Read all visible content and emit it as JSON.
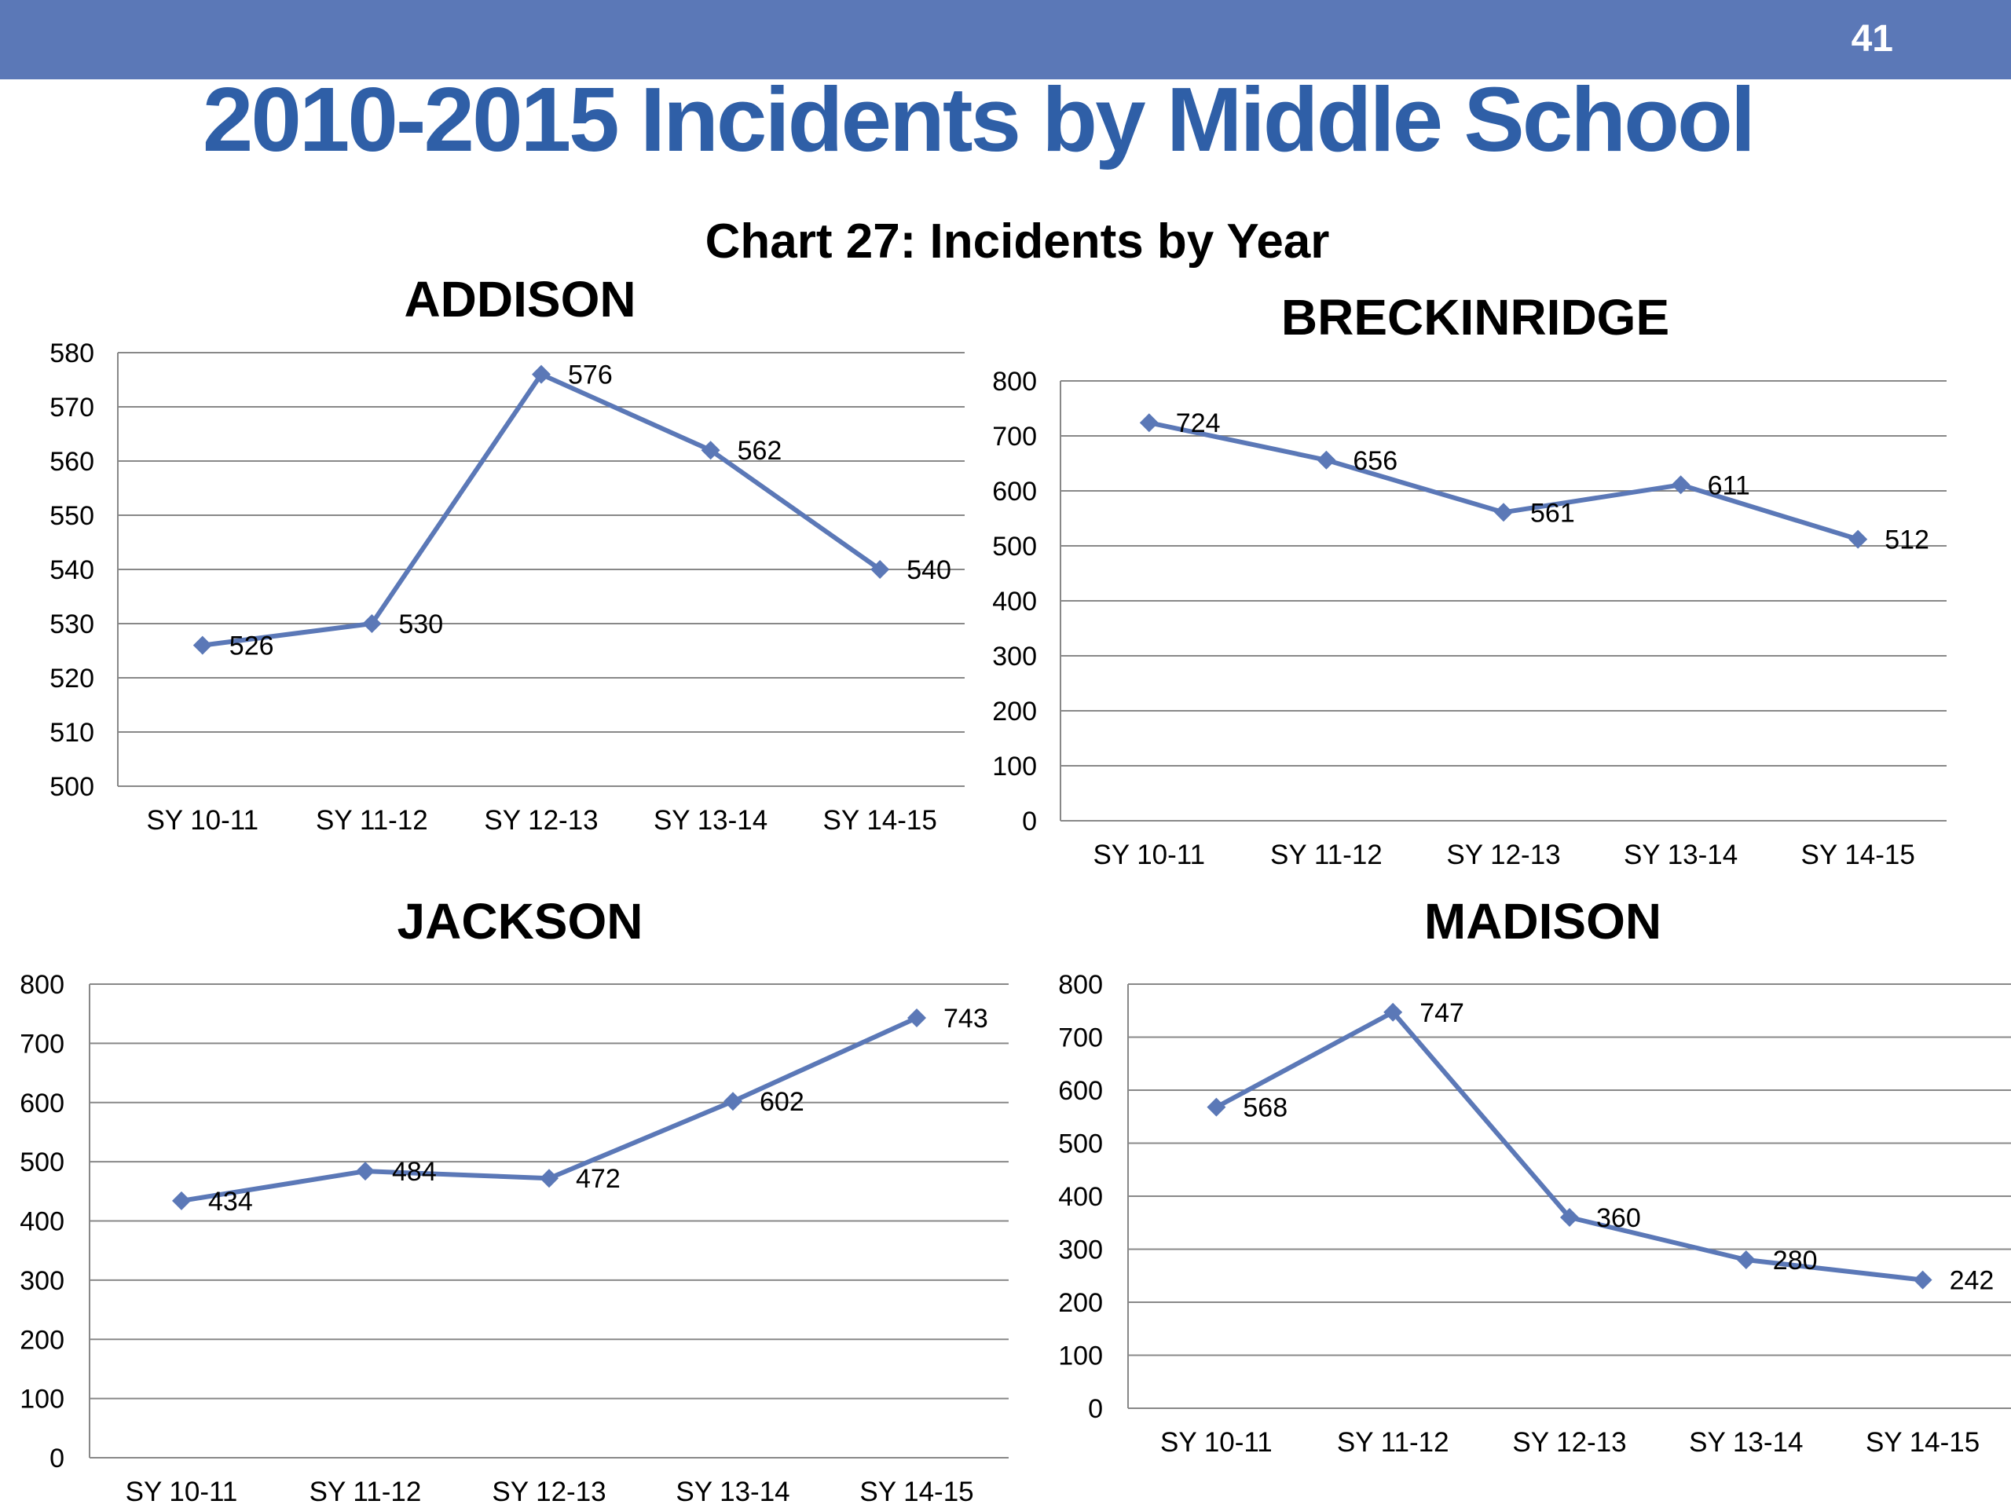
{
  "slide": {
    "number": "41",
    "title": "2010-2015 Incidents by Middle School",
    "accent_color": "#5b78b7",
    "title_color": "#2f5fa7"
  },
  "chart_heading": "Chart 27: Incidents by Year",
  "chart_data": [
    {
      "type": "line",
      "title": "ADDISON",
      "categories": [
        "SY 10-11",
        "SY 11-12",
        "SY 12-13",
        "SY 13-14",
        "SY 14-15"
      ],
      "values": [
        526,
        530,
        576,
        562,
        540
      ],
      "ylim": [
        500,
        580
      ],
      "yticks": [
        500,
        510,
        520,
        530,
        540,
        550,
        560,
        570,
        580
      ],
      "line_color": "#5b78b7",
      "grid": true
    },
    {
      "type": "line",
      "title": "BRECKINRIDGE",
      "categories": [
        "SY 10-11",
        "SY 11-12",
        "SY 12-13",
        "SY 13-14",
        "SY 14-15"
      ],
      "values": [
        724,
        656,
        561,
        611,
        512
      ],
      "ylim": [
        0,
        800
      ],
      "yticks": [
        0,
        100,
        200,
        300,
        400,
        500,
        600,
        700,
        800
      ],
      "line_color": "#5b78b7",
      "grid": true
    },
    {
      "type": "line",
      "title": "JACKSON",
      "categories": [
        "SY 10-11",
        "SY 11-12",
        "SY 12-13",
        "SY 13-14",
        "SY 14-15"
      ],
      "values": [
        434,
        484,
        472,
        602,
        743
      ],
      "ylim": [
        0,
        800
      ],
      "yticks": [
        0,
        100,
        200,
        300,
        400,
        500,
        600,
        700,
        800
      ],
      "line_color": "#5b78b7",
      "grid": true
    },
    {
      "type": "line",
      "title": "MADISON",
      "categories": [
        "SY 10-11",
        "SY 11-12",
        "SY 12-13",
        "SY 13-14",
        "SY 14-15"
      ],
      "values": [
        568,
        747,
        360,
        280,
        242
      ],
      "ylim": [
        0,
        800
      ],
      "yticks": [
        0,
        100,
        200,
        300,
        400,
        500,
        600,
        700,
        800
      ],
      "line_color": "#5b78b7",
      "grid": true
    }
  ]
}
